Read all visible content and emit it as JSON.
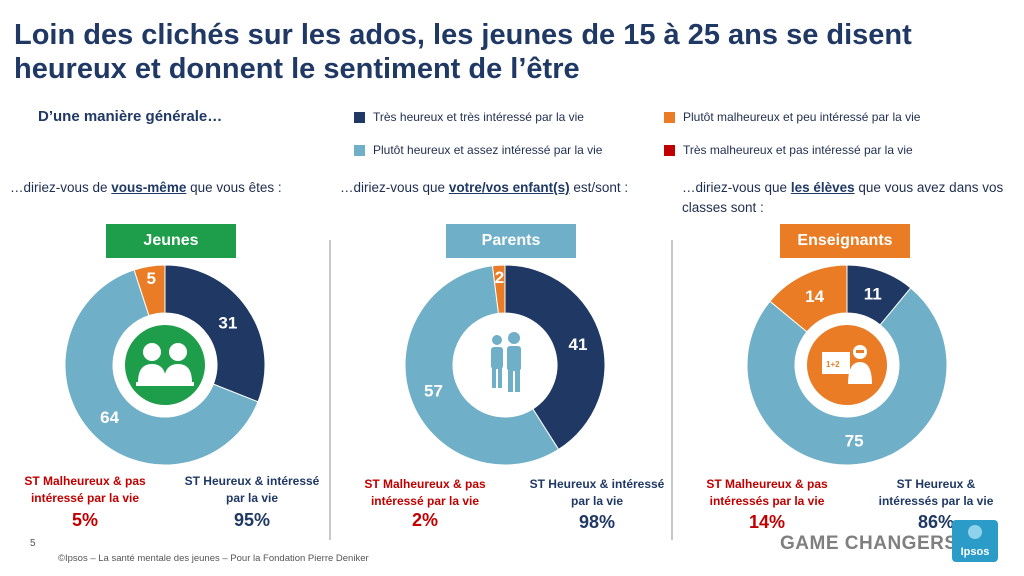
{
  "title": "Loin des clichés sur les ados, les jeunes de 15 à 25 ans se disent heureux et donnent le sentiment de l’être",
  "subtitle": "D’une manière générale…",
  "legend": [
    {
      "label": "Très heureux et très intéressé par la vie",
      "color": "#1f3864"
    },
    {
      "label": "Plutôt heureux et assez intéressé par la vie",
      "color": "#6fafc7"
    },
    {
      "label": "Plutôt malheureux et peu intéressé par la vie",
      "color": "#e97c25"
    },
    {
      "label": "Très malheureux et pas intéressé par la vie",
      "color": "#c00000"
    }
  ],
  "questions": [
    {
      "pre": "…diriez-vous de ",
      "bold": "vous-même",
      "post": " que vous êtes :"
    },
    {
      "pre": "…diriez-vous que ",
      "bold": "votre/vos enfant(s)",
      "post": " est/sont :"
    },
    {
      "pre": "…diriez-vous que ",
      "bold": "les élèves",
      "post": " que vous avez dans vos classes sont :"
    }
  ],
  "groups": [
    {
      "name": "Jeunes",
      "color": "#1e9e4a",
      "st_malheureux_label": "ST Malheureux & pas intéressé par la vie",
      "st_malheureux_value": "5%",
      "st_heureux_label": "ST Heureux & intéressé par la vie",
      "st_heureux_value": "95%",
      "icon": "students-icon"
    },
    {
      "name": "Parents",
      "color": "#6fafc7",
      "st_malheureux_label": "ST Malheureux & pas intéressé par la vie",
      "st_malheureux_value": "2%",
      "st_heureux_label": "ST Heureux & intéressé par la vie",
      "st_heureux_value": "98%",
      "icon": "family-icon"
    },
    {
      "name": "Enseignants",
      "color": "#e97c25",
      "st_malheureux_label": "ST Malheureux & pas intéressés par la vie",
      "st_malheureux_value": "14%",
      "st_heureux_label": "ST Heureux & intéressés par la vie",
      "st_heureux_value": "86%",
      "icon": "teacher-icon"
    }
  ],
  "chart_data": [
    {
      "type": "pie",
      "title": "Jeunes",
      "categories": [
        "Très heureux et très intéressé par la vie",
        "Plutôt heureux et assez intéressé par la vie",
        "Plutôt malheureux et peu intéressé par la vie",
        "Très malheureux et pas intéressé par la vie"
      ],
      "values": [
        31,
        64,
        5,
        0
      ]
    },
    {
      "type": "pie",
      "title": "Parents",
      "categories": [
        "Très heureux et très intéressé par la vie",
        "Plutôt heureux et assez intéressé par la vie",
        "Plutôt malheureux et peu intéressé par la vie",
        "Très malheureux et pas intéressé par la vie"
      ],
      "values": [
        41,
        57,
        2,
        0
      ]
    },
    {
      "type": "pie",
      "title": "Enseignants",
      "categories": [
        "Très heureux et très intéressé par la vie",
        "Plutôt heureux et assez intéressé par la vie",
        "Plutôt malheureux et peu intéressé par la vie",
        "Très malheureux et pas intéressé par la vie"
      ],
      "values": [
        11,
        75,
        14,
        0
      ]
    }
  ],
  "footer": "©Ipsos – La santé mentale des jeunes – Pour  la Fondation Pierre Deniker",
  "page_number": "5",
  "brand": "GAME CHANGERS",
  "logo_text": "Ipsos"
}
